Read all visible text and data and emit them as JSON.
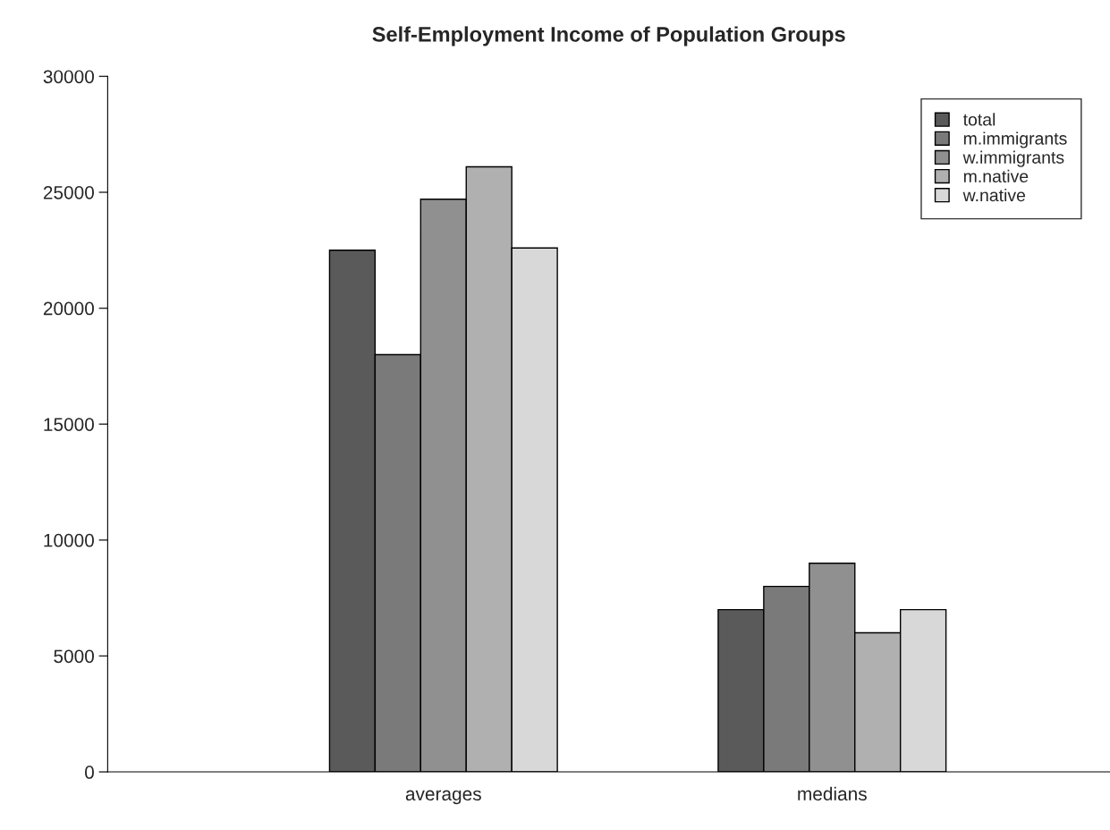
{
  "chart_data": {
    "type": "bar",
    "title": "Self-Employment Income of Population Groups",
    "categories": [
      "averages",
      "medians"
    ],
    "series": [
      {
        "name": "total",
        "color": "#5a5a5a",
        "values": [
          22500,
          7000
        ]
      },
      {
        "name": "m.immigrants",
        "color": "#7a7a7a",
        "values": [
          18000,
          8000
        ]
      },
      {
        "name": "w.immigrants",
        "color": "#909090",
        "values": [
          24700,
          9000
        ]
      },
      {
        "name": "m.native",
        "color": "#b0b0b0",
        "values": [
          26100,
          6000
        ]
      },
      {
        "name": "w.native",
        "color": "#d8d8d8",
        "values": [
          22600,
          7000
        ]
      }
    ],
    "ylim": [
      0,
      30000
    ],
    "yticks": [
      0,
      5000,
      10000,
      15000,
      20000,
      25000,
      30000
    ],
    "grid": false,
    "legend": "top right"
  }
}
